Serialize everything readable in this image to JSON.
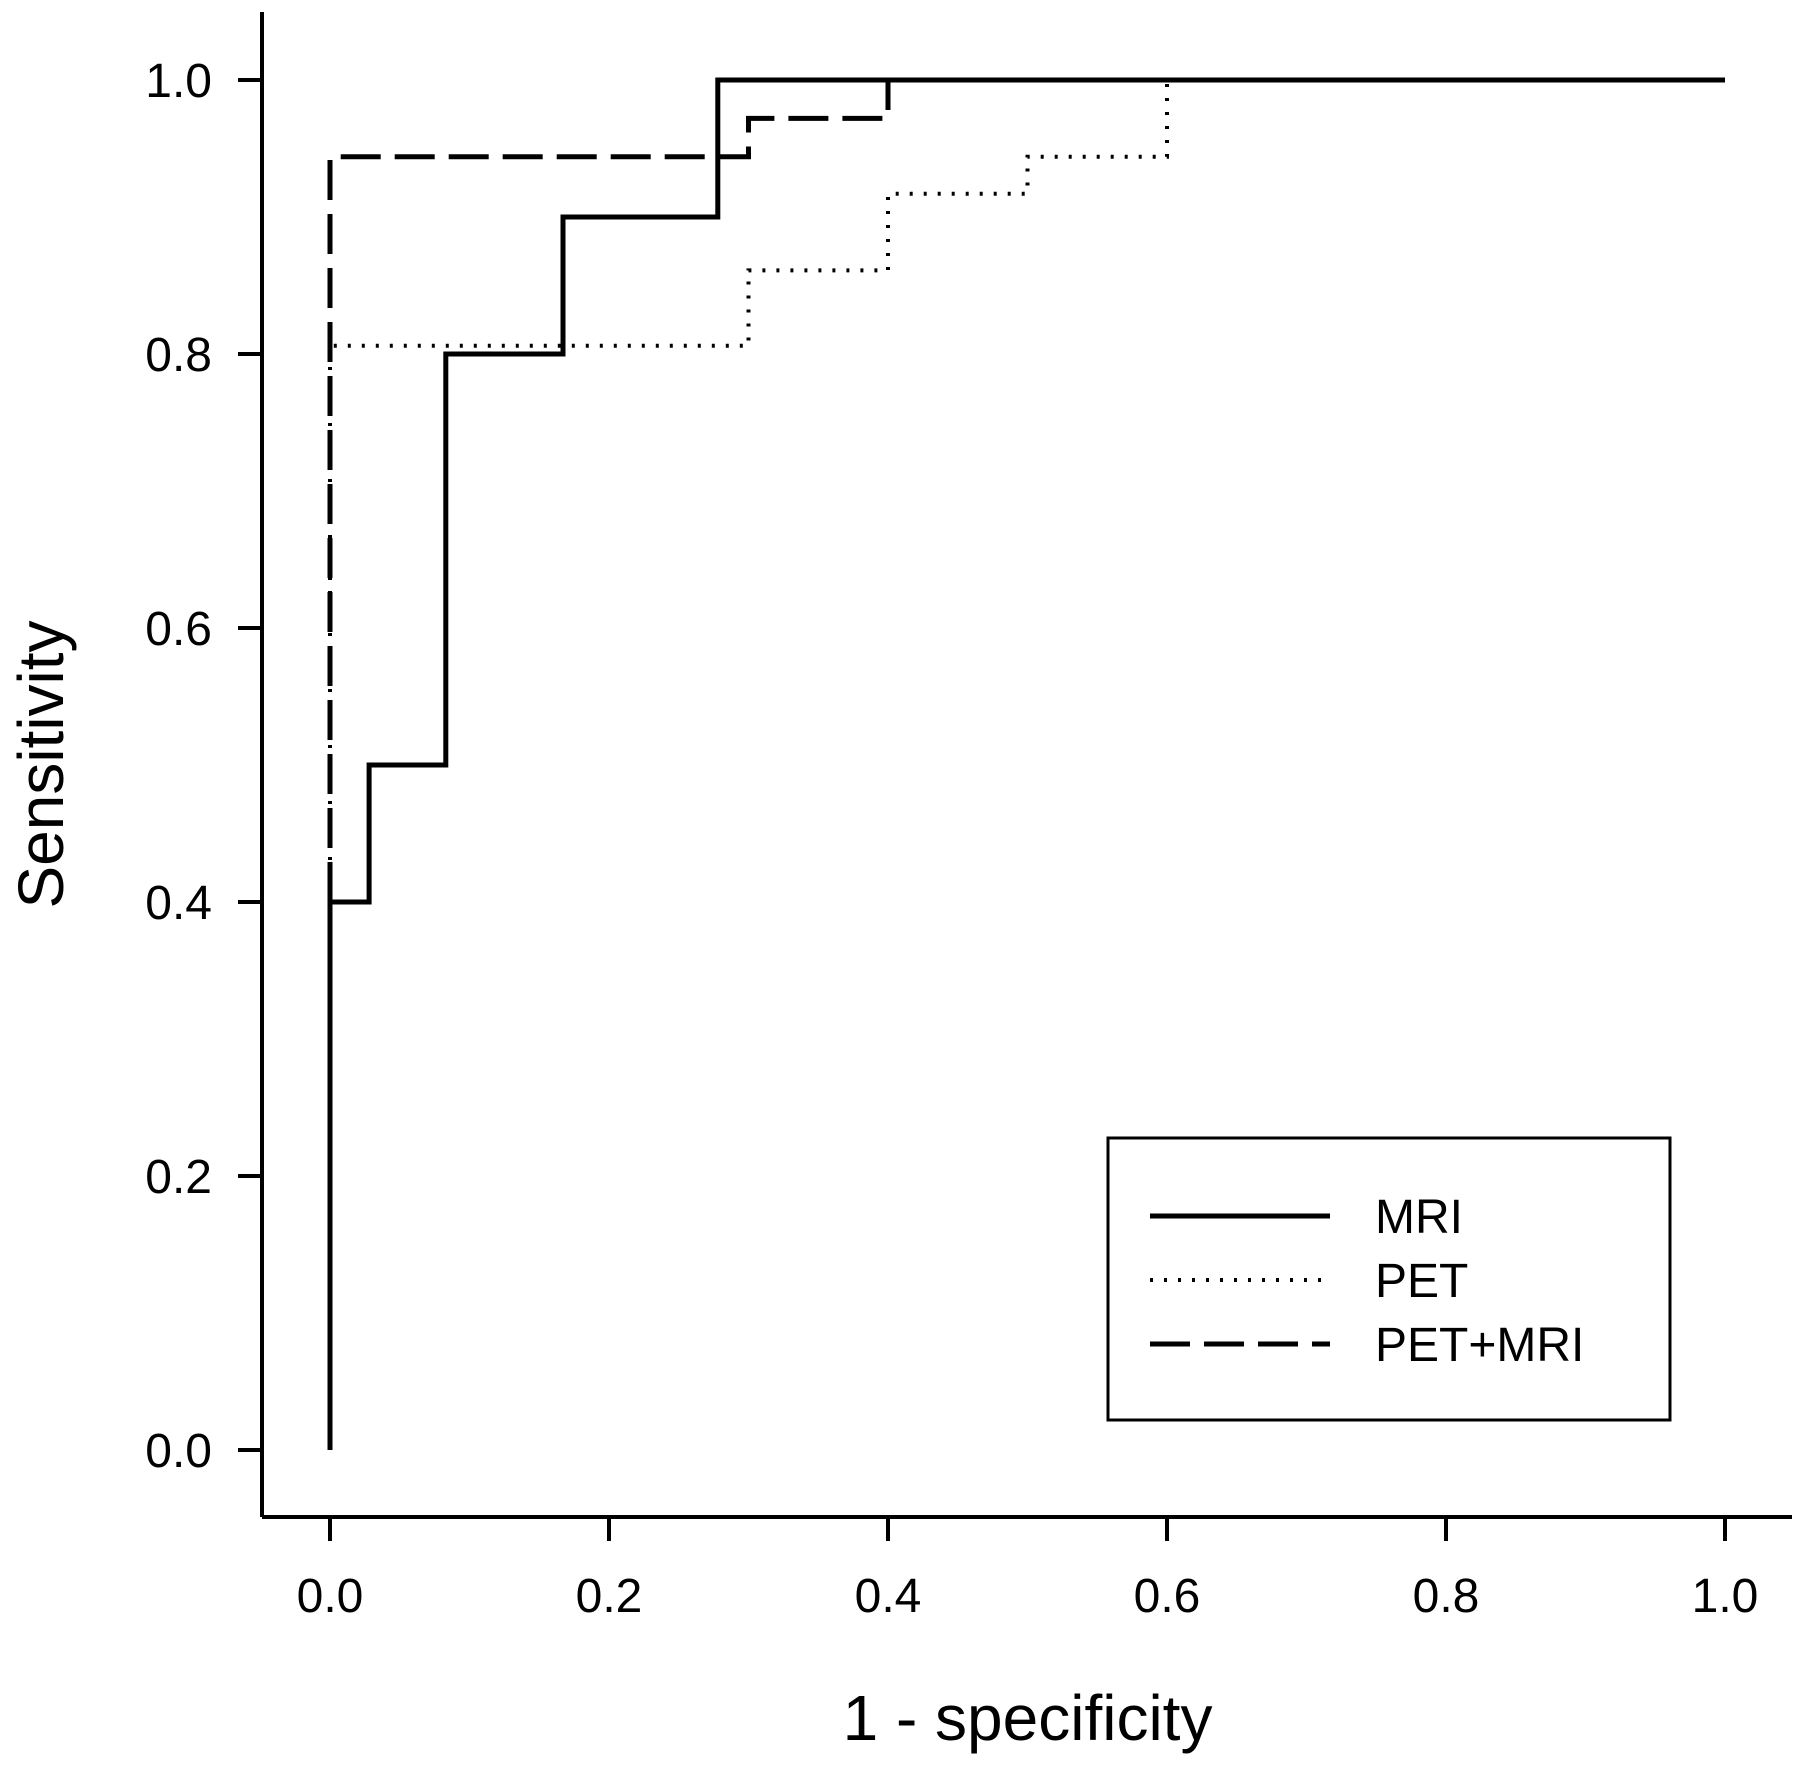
{
  "chart_data": {
    "type": "line",
    "xlabel": "1 - specificity",
    "ylabel": "Sensitivity",
    "xlim": [
      -0.05,
      1.05
    ],
    "ylim": [
      -0.05,
      1.05
    ],
    "x_ticks": [
      "0.0",
      "0.2",
      "0.4",
      "0.6",
      "0.8",
      "1.0"
    ],
    "y_ticks": [
      "0.0",
      "0.2",
      "0.4",
      "0.6",
      "0.8",
      "1.0"
    ],
    "grid": false,
    "legend_position": "bottom-right",
    "series": [
      {
        "name": "MRI",
        "style": "solid",
        "color": "#000000",
        "points": [
          [
            0,
            0
          ],
          [
            0,
            0.4
          ],
          [
            0.028,
            0.4
          ],
          [
            0.028,
            0.5
          ],
          [
            0.083,
            0.5
          ],
          [
            0.083,
            0.8
          ],
          [
            0.167,
            0.8
          ],
          [
            0.167,
            0.9
          ],
          [
            0.278,
            0.9
          ],
          [
            0.278,
            1.0
          ],
          [
            1.0,
            1.0
          ]
        ]
      },
      {
        "name": "PET",
        "style": "dotted",
        "color": "#000000",
        "points": [
          [
            0,
            0.4
          ],
          [
            0,
            0.806
          ],
          [
            0.3,
            0.806
          ],
          [
            0.3,
            0.861
          ],
          [
            0.4,
            0.861
          ],
          [
            0.4,
            0.917
          ],
          [
            0.5,
            0.917
          ],
          [
            0.5,
            0.944
          ],
          [
            0.6,
            0.944
          ],
          [
            0.6,
            1.0
          ],
          [
            1.0,
            1.0
          ]
        ]
      },
      {
        "name": "PET+MRI",
        "style": "dashed",
        "color": "#000000",
        "points": [
          [
            0,
            0.4
          ],
          [
            0,
            0.944
          ],
          [
            0.3,
            0.944
          ],
          [
            0.3,
            0.972
          ],
          [
            0.4,
            0.972
          ],
          [
            0.4,
            1.0
          ],
          [
            1.0,
            1.0
          ]
        ]
      }
    ]
  }
}
